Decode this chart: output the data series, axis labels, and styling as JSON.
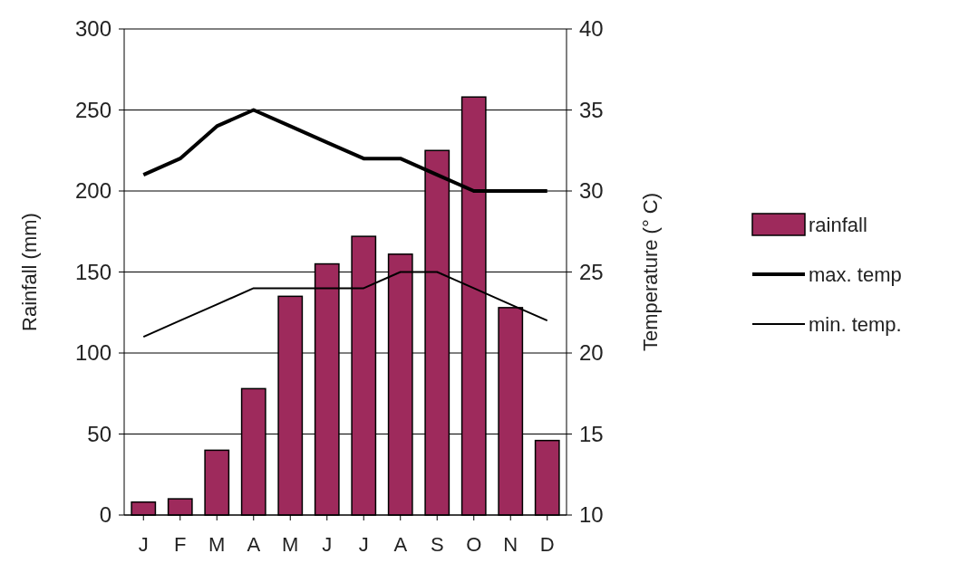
{
  "chart_data": {
    "type": "bar",
    "ylabel": "Rainfall (mm)",
    "y2label": "Temperature (° C)",
    "categories": [
      "J",
      "F",
      "M",
      "A",
      "M",
      "J",
      "J",
      "A",
      "S",
      "O",
      "N",
      "D"
    ],
    "series": [
      {
        "name": "rainfall",
        "color": "#9e2a5c",
        "values": [
          8,
          10,
          40,
          78,
          135,
          155,
          172,
          161,
          225,
          258,
          128,
          46
        ]
      },
      {
        "name": "max. temp",
        "type": "line",
        "axis": "y2",
        "color": "#000000",
        "values": [
          31,
          32,
          34,
          35,
          34,
          33,
          32,
          32,
          31,
          30,
          30,
          30
        ]
      },
      {
        "name": "min. temp.",
        "type": "line",
        "axis": "y2",
        "color": "#000000",
        "values": [
          21,
          22,
          23,
          24,
          24,
          24,
          24,
          25,
          25,
          24,
          23,
          22
        ]
      }
    ],
    "ylim": [
      0,
      300
    ],
    "yticks": [
      0,
      50,
      100,
      150,
      200,
      250,
      300
    ],
    "y2lim": [
      10,
      40
    ],
    "y2ticks": [
      10,
      15,
      20,
      25,
      30,
      35,
      40
    ],
    "grid": "y",
    "legend": "right",
    "marker": "none"
  }
}
